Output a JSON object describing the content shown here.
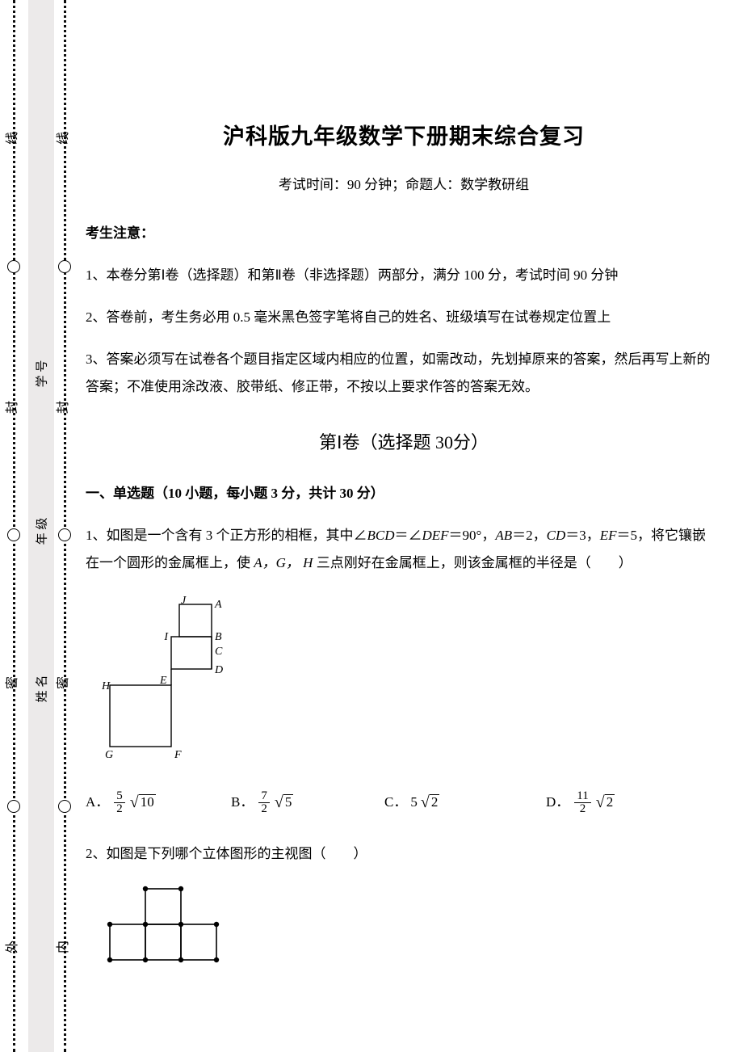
{
  "gutter": {
    "outer_chars": [
      "外",
      "密",
      "封",
      "线"
    ],
    "inner_chars": [
      "内",
      "密",
      "封",
      "线"
    ],
    "mid_chars": [
      "姓 名",
      "年 级",
      "学 号"
    ],
    "char_color": "#000000",
    "dot_color": "#000000"
  },
  "doc": {
    "title": "沪科版九年级数学下册期末综合复习",
    "subtitle": "考试时间：90 分钟；命题人：数学教研组",
    "notice_label": "考生注意：",
    "notices": [
      "1、本卷分第Ⅰ卷（选择题）和第Ⅱ卷（非选择题）两部分，满分 100 分，考试时间 90 分钟",
      "2、答卷前，考生务必用 0.5 毫米黑色签字笔将自己的姓名、班级填写在试卷规定位置上",
      "3、答案必须写在试卷各个题目指定区域内相应的位置，如需改动，先划掉原来的答案，然后再写上新的答案；不准使用涂改液、胶带纸、修正带，不按以上要求作答的答案无效。"
    ],
    "section1_title": "第Ⅰ卷（选择题  30分）",
    "mcq_heading": "一、单选题（10 小题，每小题 3 分，共计 30 分）",
    "q1": {
      "prefix": "1、如图是一个含有 3 个正方形的相框，其中∠",
      "ang1": "BCD",
      "eq1": "＝∠",
      "ang2": "DEF",
      "eq2": "＝90°，",
      "ab_lbl": "AB",
      "ab_eq": "＝2，",
      "cd_lbl": "CD",
      "cd_eq": "＝3，",
      "ef_lbl": "EF",
      "ef_eq": "＝5，将它镶嵌",
      "line2_a": "在一个圆形的金属框上，使 ",
      "pts": "A，G，  H",
      "line2_b": " 三点刚好在金属框上，则该金属框的半径是（　　）",
      "labels": {
        "J": "J",
        "A": "A",
        "I": "I",
        "B": "B",
        "C": "C",
        "D": "D",
        "H": "H",
        "E": "E",
        "G": "G",
        "F": "F"
      },
      "opts": {
        "A": {
          "tag": "A．",
          "num": "5",
          "den": "2",
          "rad": "10"
        },
        "B": {
          "tag": "B．",
          "num": "7",
          "den": "2",
          "rad": "5"
        },
        "C": {
          "tag": "C．",
          "coef": "5",
          "rad": "2"
        },
        "D": {
          "tag": "D．",
          "num": "11",
          "den": "2",
          "rad": "2"
        }
      }
    },
    "q2": {
      "text": "2、如图是下列哪个立体图形的主视图（　　）"
    }
  },
  "figure1": {
    "type": "diagram",
    "stroke": "#000000",
    "stroke_width": 1.4,
    "label_fontsize": 14,
    "J": [
      96,
      10
    ],
    "A": [
      136,
      10
    ],
    "I": [
      96,
      50
    ],
    "B": [
      136,
      50
    ],
    "C": [
      136,
      66
    ],
    "Cleft": [
      86,
      66
    ],
    "D": [
      136,
      90
    ],
    "Dleft": [
      86,
      90
    ],
    "H": [
      10,
      110
    ],
    "E": [
      86,
      110
    ],
    "G": [
      10,
      186
    ],
    "F": [
      86,
      186
    ]
  },
  "figure2": {
    "type": "diagram",
    "stroke": "#000000",
    "stroke_width": 1.6,
    "dot_r": 3.2,
    "unit": 44,
    "cells": [
      [
        1,
        0
      ],
      [
        0,
        1
      ],
      [
        1,
        1
      ],
      [
        2,
        1
      ]
    ]
  },
  "colors": {
    "page_bg": "#ffffff",
    "gutter_mid_bg": "#eceaea",
    "text": "#000000"
  }
}
